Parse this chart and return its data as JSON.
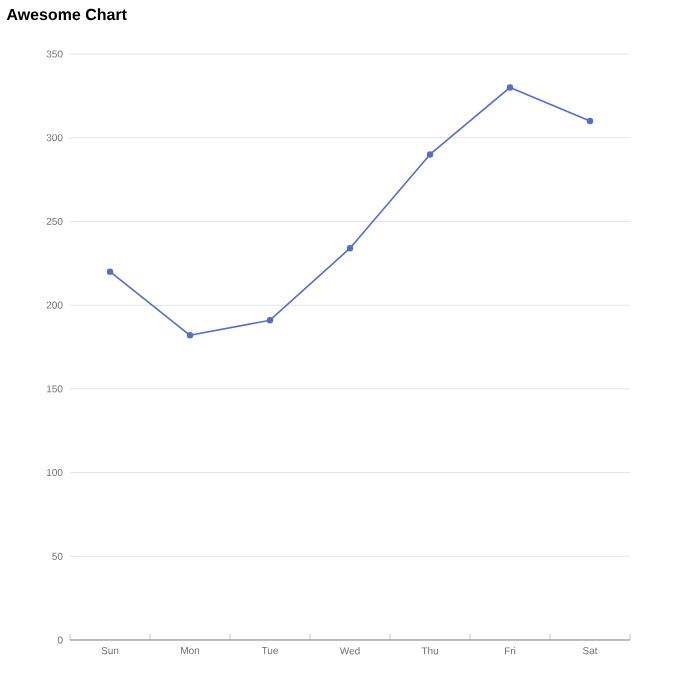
{
  "chart_data": {
    "type": "line",
    "title": "Awesome Chart",
    "categories": [
      "Sun",
      "Mon",
      "Tue",
      "Wed",
      "Thu",
      "Fri",
      "Sat"
    ],
    "series": [
      {
        "color": "#5470c6",
        "values": [
          220,
          182,
          191,
          234,
          290,
          330,
          310
        ]
      }
    ],
    "ylim": [
      0,
      350
    ],
    "yticks": [
      0,
      50,
      100,
      150,
      200,
      250,
      300,
      350
    ],
    "grid": "y",
    "marker": "circle",
    "line_style": "solid"
  }
}
